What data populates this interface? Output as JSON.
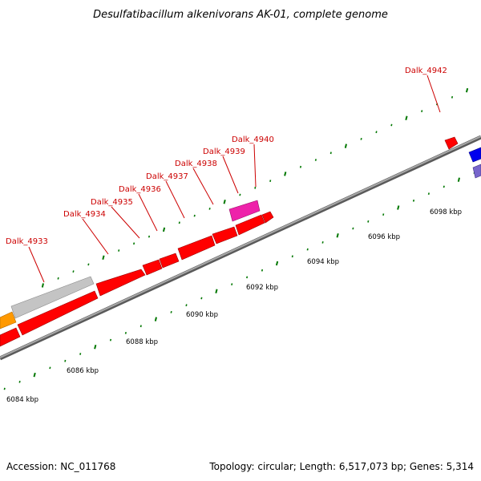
{
  "title": "Desulfatibacillum alkenivorans AK-01, complete genome",
  "accession": "Accession: NC_011768",
  "summary": "Topology: circular; Length: 6,517,073 bp; Genes: 5,314",
  "colors": {
    "gene_red": "#ff0000",
    "gene_grey": "#c0c0c0",
    "gene_orange": "#ff9900",
    "gene_magenta": "#ee22aa",
    "gene_blue": "#0000ee",
    "gene_slate": "#7766cc",
    "tick_green": "#007700",
    "label_red": "#cc0000"
  },
  "gene_labels": [
    "Dalk_4933",
    "Dalk_4934",
    "Dalk_4935",
    "Dalk_4936",
    "Dalk_4937",
    "Dalk_4938",
    "Dalk_4939",
    "Dalk_4940",
    "Dalk_4942"
  ],
  "kbp_labels": [
    "6084 kbp",
    "6086 kbp",
    "6088 kbp",
    "6090 kbp",
    "6092 kbp",
    "6094 kbp",
    "6096 kbp",
    "6098 kbp"
  ]
}
